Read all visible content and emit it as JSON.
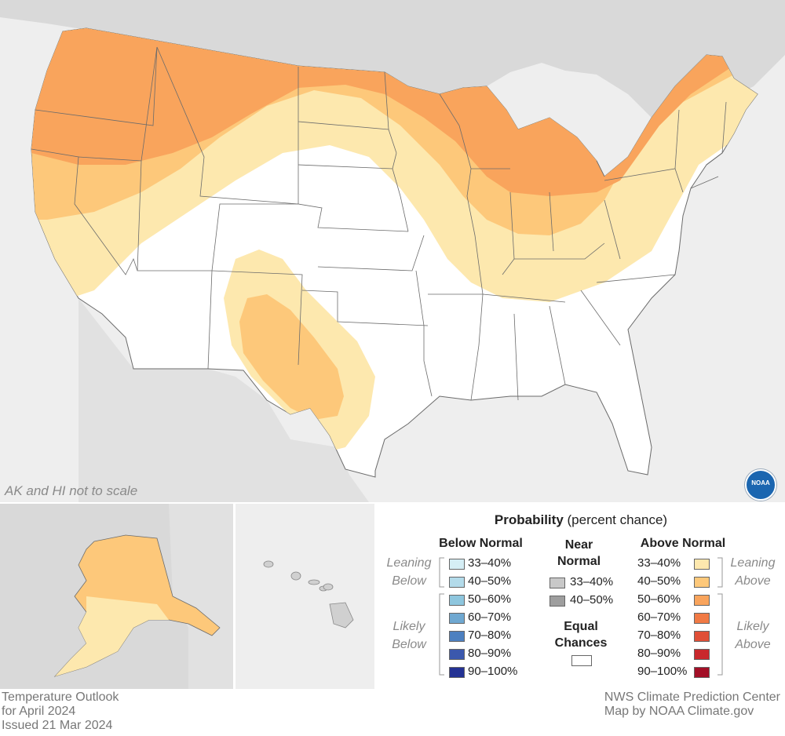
{
  "map": {
    "note": "AK and HI not to scale",
    "logo_text": "NOAA"
  },
  "legend": {
    "title_bold": "Probability",
    "title_rest": " (percent chance)",
    "below": {
      "heading": "Below Normal",
      "lean_label": [
        "Leaning",
        "Below"
      ],
      "likely_label": [
        "Likely",
        "Below"
      ],
      "rows": [
        {
          "label": "33–40%",
          "color": "#d5eef5"
        },
        {
          "label": "40–50%",
          "color": "#b3dbea"
        },
        {
          "label": "50–60%",
          "color": "#8ec6de"
        },
        {
          "label": "60–70%",
          "color": "#6fa8d1"
        },
        {
          "label": "70–80%",
          "color": "#4d80c0"
        },
        {
          "label": "80–90%",
          "color": "#3b58ad"
        },
        {
          "label": "90–100%",
          "color": "#243294"
        }
      ]
    },
    "near": {
      "heading": [
        "Near",
        "Normal"
      ],
      "rows": [
        {
          "label": "33–40%",
          "color": "#c8c8c8"
        },
        {
          "label": "40–50%",
          "color": "#9e9e9e"
        }
      ]
    },
    "equal": {
      "heading": [
        "Equal",
        "Chances"
      ],
      "color": "#ffffff"
    },
    "above": {
      "heading": "Above Normal",
      "lean_label": [
        "Leaning",
        "Above"
      ],
      "likely_label": [
        "Likely",
        "Above"
      ],
      "rows": [
        {
          "label": "33–40%",
          "color": "#fde8ae"
        },
        {
          "label": "40–50%",
          "color": "#fdc87a"
        },
        {
          "label": "50–60%",
          "color": "#f9a45c"
        },
        {
          "label": "60–70%",
          "color": "#f17a45"
        },
        {
          "label": "70–80%",
          "color": "#e04f37"
        },
        {
          "label": "80–90%",
          "color": "#c9282c"
        },
        {
          "label": "90–100%",
          "color": "#a30f27"
        }
      ]
    }
  },
  "footer": {
    "left": [
      "Temperature Outlook",
      "for April 2024",
      "Issued 21 Mar 2024"
    ],
    "right": [
      "NWS Climate Prediction Center",
      "Map by NOAA Climate.gov"
    ]
  }
}
